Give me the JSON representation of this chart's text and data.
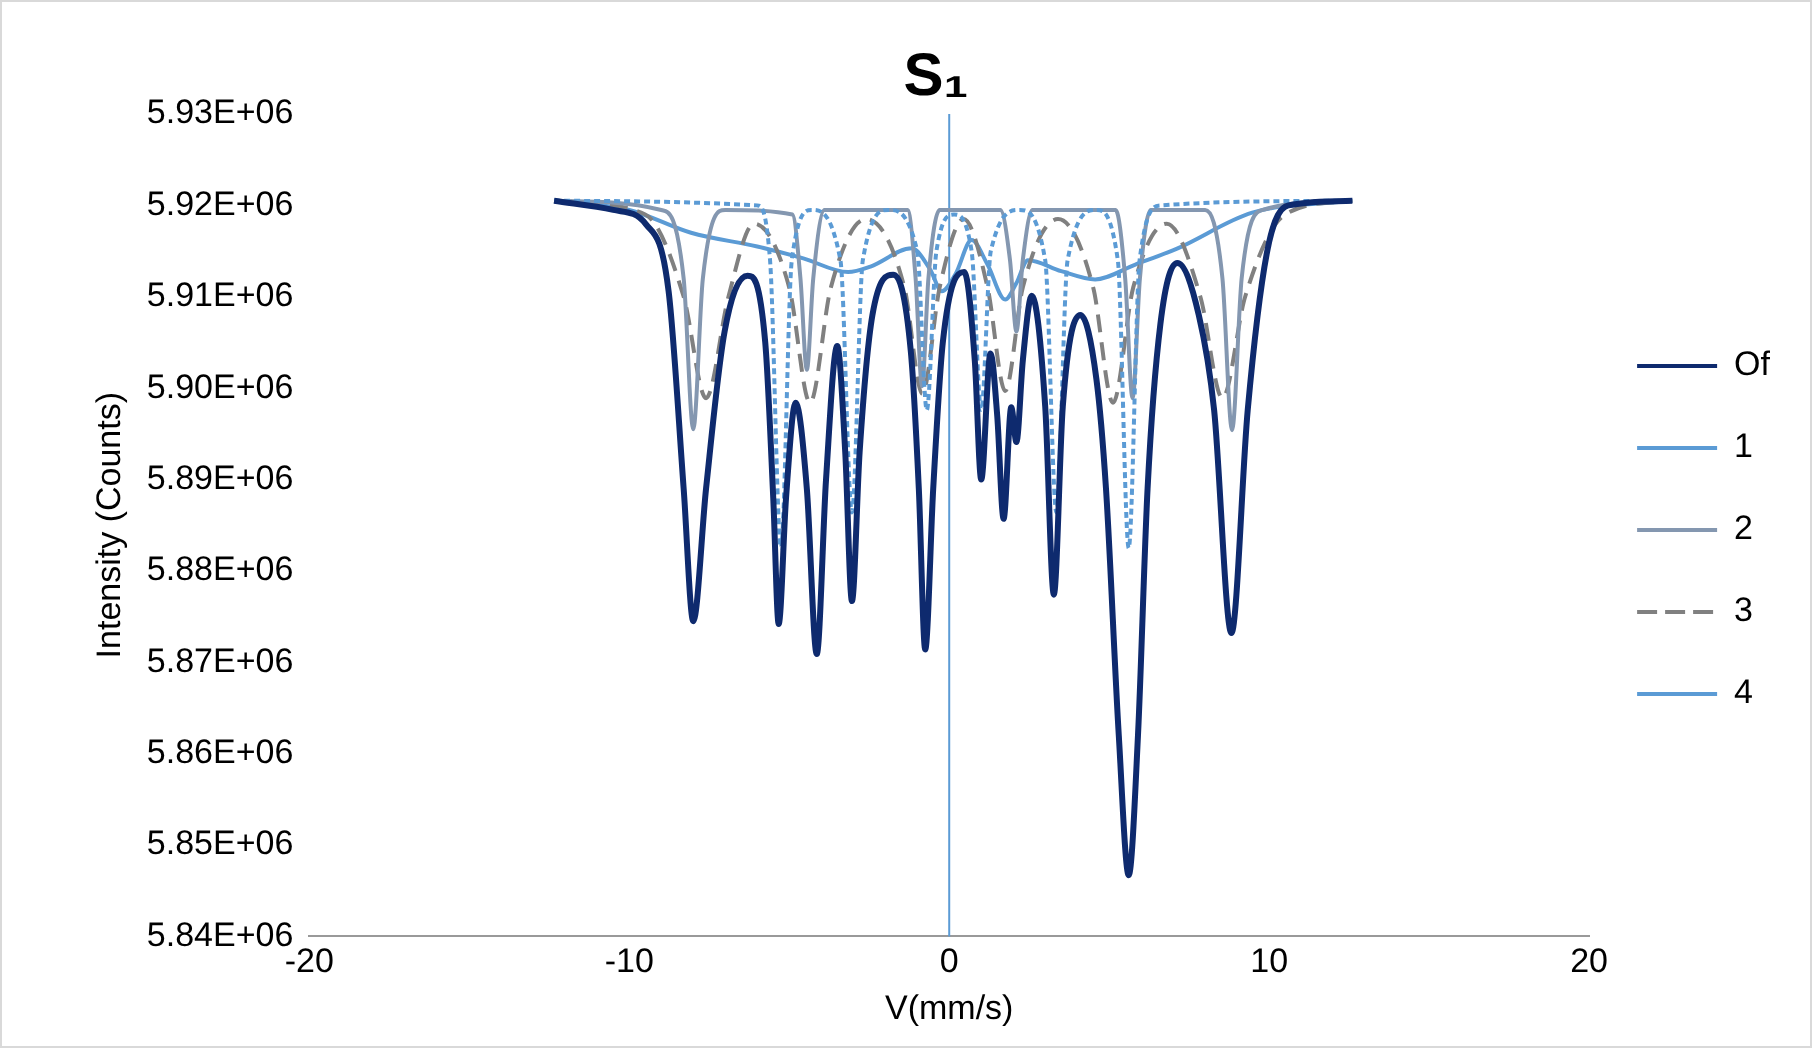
{
  "chart_data": {
    "type": "line",
    "title": "S₁",
    "xlabel": "V(mm/s)",
    "ylabel": "Intensity (Counts)",
    "xlim": [
      -20,
      20
    ],
    "xticks": [
      -20,
      -10,
      0,
      10,
      20
    ],
    "ylim": [
      5840000,
      5930000
    ],
    "yticks": [
      {
        "value": 5840000,
        "label": "5.84E+06"
      },
      {
        "value": 5850000,
        "label": "5.85E+06"
      },
      {
        "value": 5860000,
        "label": "5.86E+06"
      },
      {
        "value": 5870000,
        "label": "5.87E+06"
      },
      {
        "value": 5880000,
        "label": "5.88E+06"
      },
      {
        "value": 5890000,
        "label": "5.89E+06"
      },
      {
        "value": 5900000,
        "label": "5.90E+06"
      },
      {
        "value": 5910000,
        "label": "5.91E+06"
      },
      {
        "value": 5920000,
        "label": "5.92E+06"
      },
      {
        "value": 5930000,
        "label": "5.93E+06"
      }
    ],
    "grid": false,
    "legend": "right",
    "ref_lines": [
      {
        "axis": "x",
        "value": 0,
        "color": "#5b9bd5"
      }
    ],
    "series": [
      {
        "name": "Of",
        "color": "#0e2a6e",
        "line_style": "solid",
        "x": [
          -12.35,
          -10.5,
          -9.47,
          -8.77,
          -8.3,
          -8.0,
          -7.6,
          -7.02,
          -6.3,
          -5.75,
          -5.5,
          -5.33,
          -5.1,
          -4.8,
          -4.45,
          -4.14,
          -3.85,
          -3.5,
          -3.25,
          -3.04,
          -2.8,
          -2.4,
          -1.75,
          -1.2,
          -0.95,
          -0.75,
          -0.5,
          -0.2,
          0.47,
          0.8,
          1.0,
          1.29,
          1.5,
          1.7,
          1.94,
          2.1,
          2.3,
          2.58,
          3.0,
          3.27,
          3.55,
          4.1,
          4.6,
          4.9,
          5.3,
          5.61,
          5.9,
          6.2,
          6.6,
          7.13,
          7.8,
          8.28,
          8.82,
          9.33,
          9.94,
          10.6,
          12.6
        ],
        "values": [
          5920500,
          5919500,
          5917900,
          5910600,
          5889000,
          5874500,
          5889000,
          5906200,
          5912300,
          5905000,
          5888000,
          5874200,
          5888000,
          5898400,
          5889000,
          5870900,
          5890000,
          5904600,
          5893000,
          5876700,
          5893000,
          5908000,
          5912400,
          5904000,
          5889000,
          5871400,
          5889000,
          5905000,
          5912700,
          5903000,
          5890000,
          5903800,
          5897000,
          5885700,
          5897900,
          5894100,
          5903000,
          5910100,
          5898000,
          5877400,
          5898000,
          5908000,
          5901000,
          5889000,
          5862000,
          5846700,
          5862000,
          5889000,
          5907000,
          5913700,
          5908000,
          5897600,
          5873200,
          5897600,
          5915000,
          5920000,
          5920500
        ]
      },
      {
        "name": "1",
        "color": "#5b9bd5",
        "line_style": "dotted",
        "x": [
          -12.35,
          -6,
          -5.6,
          -5.26,
          -4.92,
          -4.3,
          -3.4,
          -3.04,
          -2.7,
          -1.9,
          -1.0,
          -0.7,
          -0.4,
          0.15,
          0.7,
          1.0,
          1.3,
          2.2,
          3.0,
          3.35,
          3.7,
          4.6,
          5.27,
          5.61,
          5.95,
          6.6,
          12.6
        ],
        "values": [
          5920500,
          5920000,
          5914000,
          5882500,
          5914000,
          5919500,
          5914000,
          5886400,
          5914000,
          5919500,
          5915000,
          5897600,
          5915000,
          5919000,
          5915000,
          5897600,
          5915000,
          5919500,
          5914000,
          5886400,
          5914000,
          5919500,
          5914000,
          5882500,
          5914000,
          5920000,
          5920500
        ]
      },
      {
        "name": "2",
        "color": "#8497b0",
        "line_style": "solid",
        "x": [
          -12.35,
          -9,
          -8.3,
          -8.0,
          -7.7,
          -7,
          -4.9,
          -4.65,
          -4.45,
          -4.25,
          -3.9,
          -1.3,
          -1.05,
          -0.85,
          -0.65,
          -0.3,
          1.6,
          1.9,
          2.1,
          2.3,
          2.6,
          5.2,
          5.5,
          5.73,
          5.96,
          6.3,
          8.0,
          8.54,
          8.84,
          9.14,
          9.8,
          12.6
        ],
        "values": [
          5920500,
          5919500,
          5912000,
          5895500,
          5912000,
          5919500,
          5919000,
          5912000,
          5902000,
          5912000,
          5919500,
          5919500,
          5912000,
          5900200,
          5912000,
          5919500,
          5919500,
          5914000,
          5906200,
          5914000,
          5919500,
          5919500,
          5912000,
          5898900,
          5912000,
          5919500,
          5919500,
          5912000,
          5895400,
          5912000,
          5919500,
          5920500
        ]
      },
      {
        "name": "3",
        "color": "#808080",
        "line_style": "dashed",
        "x": [
          -12.35,
          -9.5,
          -8.3,
          -7.6,
          -6.9,
          -6.1,
          -5.0,
          -4.35,
          -3.7,
          -2.6,
          -1.4,
          -0.84,
          -0.3,
          0.45,
          1.2,
          1.75,
          2.3,
          3.4,
          4.5,
          5.12,
          5.75,
          6.8,
          7.85,
          8.54,
          9.25,
          10.5,
          12.6
        ],
        "values": [
          5920500,
          5919000,
          5910000,
          5898900,
          5910000,
          5918000,
          5911000,
          5898400,
          5911000,
          5918500,
          5911000,
          5899400,
          5911000,
          5918500,
          5911000,
          5899700,
          5911000,
          5918500,
          5911000,
          5898400,
          5911000,
          5918000,
          5910000,
          5898900,
          5910000,
          5919000,
          5920500
        ]
      },
      {
        "name": "4",
        "color": "#5b9bd5",
        "line_style": "solid",
        "x": [
          -12.35,
          -10,
          -8.07,
          -6,
          -4.56,
          -3.16,
          -2.46,
          -1.17,
          -0.6,
          -0.23,
          0.2,
          0.7,
          1.2,
          1.75,
          2.1,
          2.46,
          3.5,
          4.56,
          5.8,
          7.14,
          9.47,
          12.6
        ],
        "values": [
          5920500,
          5919500,
          5917000,
          5915500,
          5914200,
          5912700,
          5913300,
          5915300,
          5913000,
          5910600,
          5912500,
          5916200,
          5913500,
          5909700,
          5911500,
          5914000,
          5912800,
          5911900,
          5913500,
          5915300,
          5919200,
          5920500
        ]
      }
    ]
  }
}
